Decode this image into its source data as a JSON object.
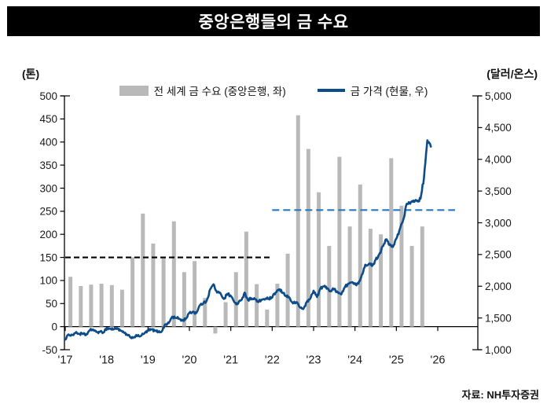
{
  "title": "중앙은행들의 금 수요",
  "source": "자료: NH투자증권",
  "left_axis_unit": "(톤)",
  "right_axis_unit": "(달러/온스)",
  "legend": [
    {
      "label": "전 세계 금 수요 (중앙은행, 좌)",
      "swatch": "bar"
    },
    {
      "label": "금 가격 (현물, 우)",
      "swatch": "line"
    }
  ],
  "colors": {
    "bar": "#b9b9b9",
    "line": "#0d4c8a",
    "black_dash": "#000000",
    "blue_dash": "#2878be",
    "axis": "#000000",
    "tick_text": "#1a1a1a"
  },
  "chart_data": {
    "type": "bar+line combo",
    "title": "중앙은행들의 금 수요",
    "left_axis": {
      "label": "(톤)",
      "min": -50,
      "max": 500,
      "step": 50
    },
    "right_axis": {
      "label": "(달러/온스)",
      "min": 1000,
      "max": 5000,
      "step": 500,
      "thousands_comma": true
    },
    "x_axis": {
      "year_labels": [
        "'17",
        "'18",
        "'19",
        "'20",
        "'21",
        "'22",
        "'23",
        "'24",
        "'25",
        "'26"
      ]
    },
    "bars": {
      "name": "전 세계 금 수요 (중앙은행, 좌)",
      "unit": "톤",
      "quarters": [
        "2017Q1",
        "2017Q2",
        "2017Q3",
        "2017Q4",
        "2018Q1",
        "2018Q2",
        "2018Q3",
        "2018Q4",
        "2019Q1",
        "2019Q2",
        "2019Q3",
        "2019Q4",
        "2020Q1",
        "2020Q2",
        "2020Q3",
        "2020Q4",
        "2021Q1",
        "2021Q2",
        "2021Q3",
        "2021Q4",
        "2022Q1",
        "2022Q2",
        "2022Q3",
        "2022Q4",
        "2023Q1",
        "2023Q2",
        "2023Q3",
        "2023Q4",
        "2024Q1",
        "2024Q2",
        "2024Q3",
        "2024Q4",
        "2025Q1",
        "2025Q2",
        "2025Q3"
      ],
      "values": [
        108,
        88,
        91,
        93,
        90,
        80,
        150,
        245,
        180,
        150,
        228,
        118,
        142,
        62,
        -15,
        53,
        118,
        206,
        92,
        37,
        93,
        158,
        458,
        385,
        291,
        175,
        368,
        217,
        308,
        212,
        200,
        365,
        262,
        175,
        217
      ]
    },
    "line": {
      "name": "금 가격 (현물, 우)",
      "unit": "달러/온스",
      "start_month": "2017-01",
      "frequency": "monthly",
      "values": [
        1160,
        1240,
        1230,
        1270,
        1250,
        1250,
        1230,
        1300,
        1320,
        1280,
        1280,
        1270,
        1340,
        1330,
        1320,
        1340,
        1300,
        1270,
        1230,
        1190,
        1200,
        1220,
        1220,
        1260,
        1300,
        1320,
        1300,
        1280,
        1290,
        1400,
        1420,
        1520,
        1500,
        1490,
        1460,
        1490,
        1580,
        1600,
        1580,
        1700,
        1730,
        1770,
        1950,
        2030,
        1900,
        1890,
        1800,
        1880,
        1850,
        1750,
        1720,
        1780,
        1900,
        1780,
        1810,
        1800,
        1750,
        1790,
        1800,
        1800,
        1820,
        1900,
        1950,
        1900,
        1850,
        1820,
        1730,
        1750,
        1670,
        1640,
        1750,
        1800,
        1930,
        1830,
        1970,
        2000,
        1970,
        1920,
        1960,
        1910,
        1870,
        1980,
        2040,
        2060,
        2030,
        2040,
        2180,
        2340,
        2350,
        2320,
        2420,
        2500,
        2630,
        2740,
        2650,
        2620,
        2750,
        2900,
        3050,
        3300,
        3300,
        3350,
        3340,
        3380,
        3700,
        4300,
        4200
      ]
    },
    "reference_lines": [
      {
        "name": "demand-150t-dashed-line",
        "axis": "left",
        "value": 150,
        "from": "2017-01",
        "to": "2022-01",
        "style": "dashed",
        "color": "#000000"
      },
      {
        "name": "price-3200-dashed-line",
        "axis": "right",
        "value": 3200,
        "from": "2022-01",
        "to": "2026-06",
        "style": "dashed",
        "color": "#2878be"
      }
    ],
    "legend_position": "top",
    "grid": false
  }
}
